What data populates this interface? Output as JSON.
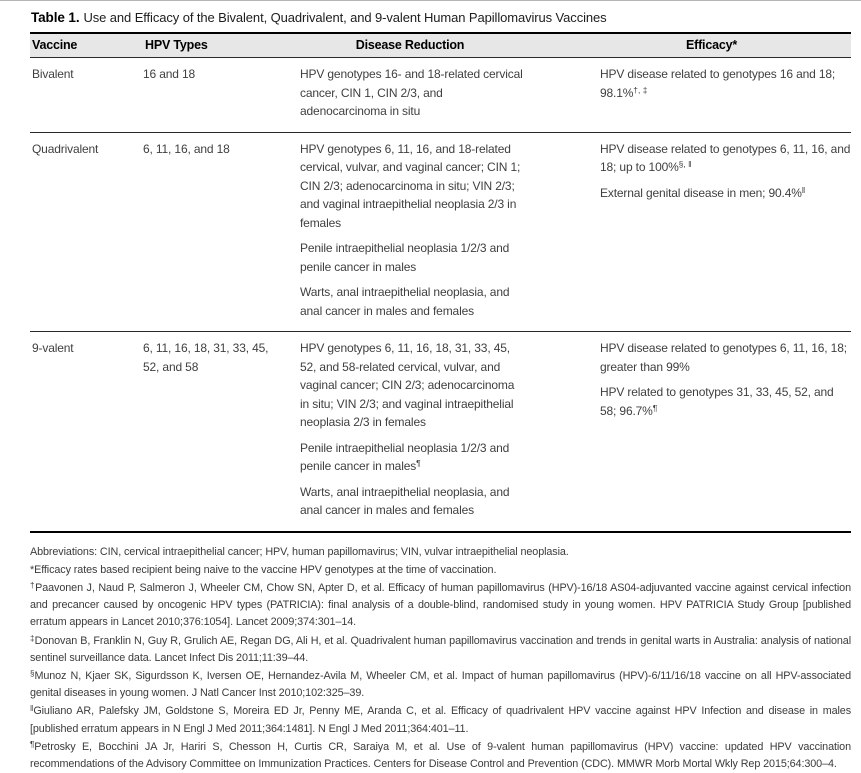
{
  "title": {
    "label": "Table 1.",
    "text": "Use and Efficacy of the Bivalent, Quadrivalent, and 9-valent Human Papillomavirus Vaccines"
  },
  "table": {
    "columns": [
      "Vaccine",
      "HPV Types",
      "Disease Reduction",
      "Efficacy*"
    ],
    "rows": [
      {
        "vaccine": "Bivalent",
        "hpv_types": "16 and 18",
        "disease_reduction": [
          {
            "text": "HPV genotypes 16- and 18-related cervical cancer, CIN 1, CIN 2/3, and adenocarcinoma in situ",
            "sup": ""
          }
        ],
        "efficacy": [
          {
            "text": "HPV disease related to genotypes 16 and 18; 98.1%",
            "sup": "†, ‡"
          }
        ]
      },
      {
        "vaccine": "Quadrivalent",
        "hpv_types": "6, 11, 16, and 18",
        "disease_reduction": [
          {
            "text": "HPV genotypes 6, 11, 16, and 18-related cervical, vulvar, and vaginal cancer; CIN 1; CIN 2/3; adenocarcinoma in situ; VIN 2/3; and vaginal intraepithelial neoplasia 2/3 in females",
            "sup": ""
          },
          {
            "text": "Penile intraepithelial neoplasia 1/2/3 and penile cancer in males",
            "sup": ""
          },
          {
            "text": "Warts, anal intraepithelial neoplasia, and anal cancer in males and females",
            "sup": ""
          }
        ],
        "efficacy": [
          {
            "text": "HPV disease related to genotypes 6, 11, 16, and 18; up to 100%",
            "sup": "§, ‖"
          },
          {
            "text": "External genital disease in men; 90.4%",
            "sup": "‖"
          }
        ]
      },
      {
        "vaccine": "9-valent",
        "hpv_types": "6, 11, 16, 18, 31, 33, 45, 52, and 58",
        "disease_reduction": [
          {
            "text": "HPV genotypes 6, 11, 16, 18, 31, 33, 45, 52, and 58-related cervical, vulvar, and vaginal cancer; CIN 2/3; adenocarcinoma in situ; VIN 2/3; and vaginal intraepithelial neoplasia 2/3 in females",
            "sup": ""
          },
          {
            "text": "Penile intraepithelial neoplasia 1/2/3 and penile cancer in males",
            "sup": "¶"
          },
          {
            "text": "Warts, anal intraepithelial neoplasia, and anal cancer in males and females",
            "sup": ""
          }
        ],
        "efficacy": [
          {
            "text": "HPV disease related to genotypes 6, 11, 16, 18; greater than 99%",
            "sup": ""
          },
          {
            "text": "HPV related to genotypes 31, 33, 45, 52, and 58; 96.7%",
            "sup": "¶"
          }
        ]
      }
    ]
  },
  "footnotes": [
    {
      "sup": "",
      "text": "Abbreviations: CIN, cervical intraepithelial cancer; HPV, human papillomavirus; VIN, vulvar intraepithelial neoplasia."
    },
    {
      "sup": "",
      "text": "*Efficacy rates based recipient being naive to the vaccine HPV genotypes at the time of vaccination."
    },
    {
      "sup": "†",
      "text": "Paavonen J, Naud P, Salmeron J, Wheeler CM, Chow SN, Apter D, et al. Efficacy of human papillomavirus (HPV)-16/18 AS04-adjuvanted vaccine against cervical infection and precancer caused by oncogenic HPV types (PATRICIA): final analysis of a double-blind, randomised study in young women. HPV PATRICIA Study Group [published erratum appears in Lancet 2010;376:1054]. Lancet 2009;374:301–14."
    },
    {
      "sup": "‡",
      "text": "Donovan B, Franklin N, Guy R, Grulich AE, Regan DG, Ali H, et al. Quadrivalent human papillomavirus vaccination and trends in genital warts in Australia: analysis of national sentinel surveillance data. Lancet Infect Dis 2011;11:39–44."
    },
    {
      "sup": "§",
      "text": "Munoz N, Kjaer SK, Sigurdsson K, Iversen OE, Hernandez-Avila M, Wheeler CM, et al. Impact of human papillomavirus (HPV)-6/11/16/18 vaccine on all HPV-associated genital diseases in young women. J Natl Cancer Inst 2010;102:325–39."
    },
    {
      "sup": "‖",
      "text": "Giuliano AR, Palefsky JM, Goldstone S, Moreira ED Jr, Penny ME, Aranda C, et al. Efficacy of quadrivalent HPV vaccine against HPV Infection and disease in males [published erratum appears in N Engl J Med 2011;364:1481]. N Engl J Med 2011;364:401–11."
    },
    {
      "sup": "¶",
      "text": "Petrosky E, Bocchini JA Jr, Hariri S, Chesson H, Curtis CR, Saraiya M, et al. Use of 9-valent human papillomavirus (HPV) vaccine: updated HPV vaccination recommendations of the Advisory Committee on Immunization Practices. Centers for Disease Control and Prevention (CDC). MMWR Morb Mortal Wkly Rep 2015;64:300–4."
    }
  ]
}
